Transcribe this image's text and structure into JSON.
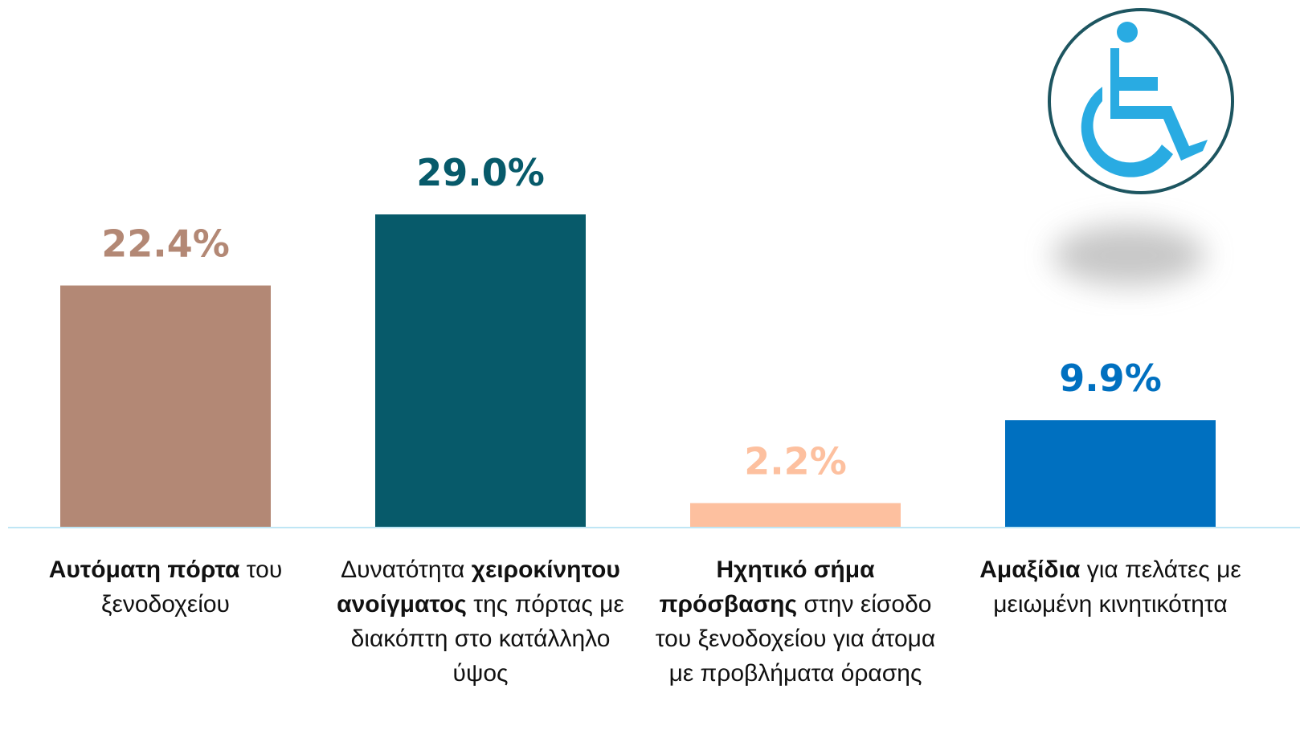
{
  "chart_data": {
    "type": "bar",
    "categories": [
      [
        {
          "text": "Αυτόματη πόρτα",
          "bold": true
        },
        {
          "text": " του ξενοδοχείου",
          "bold": false
        }
      ],
      [
        {
          "text": "Δυνατότητα ",
          "bold": false
        },
        {
          "text": "χειροκίνητου ανοίγματος",
          "bold": true
        },
        {
          "text": " της πόρτας με διακόπτη στο κατάλληλο ύψος",
          "bold": false
        }
      ],
      [
        {
          "text": "Ηχητικό σήμα πρόσβασης",
          "bold": true
        },
        {
          "text": " στην είσοδο του ξενοδοχείου για άτομα με προβλήματα όρασης",
          "bold": false
        }
      ],
      [
        {
          "text": "Αμαξίδια",
          "bold": true
        },
        {
          "text": " για πελάτες με μειωμένη κινητικότητα",
          "bold": false
        }
      ]
    ],
    "values": [
      22.4,
      29.0,
      2.2,
      9.9
    ],
    "value_labels": [
      "22.4%",
      "29.0%",
      "2.2%",
      "9.9%"
    ],
    "colors": [
      "#b38875",
      "#075a6a",
      "#fdc09f",
      "#0070c0"
    ]
  }
}
